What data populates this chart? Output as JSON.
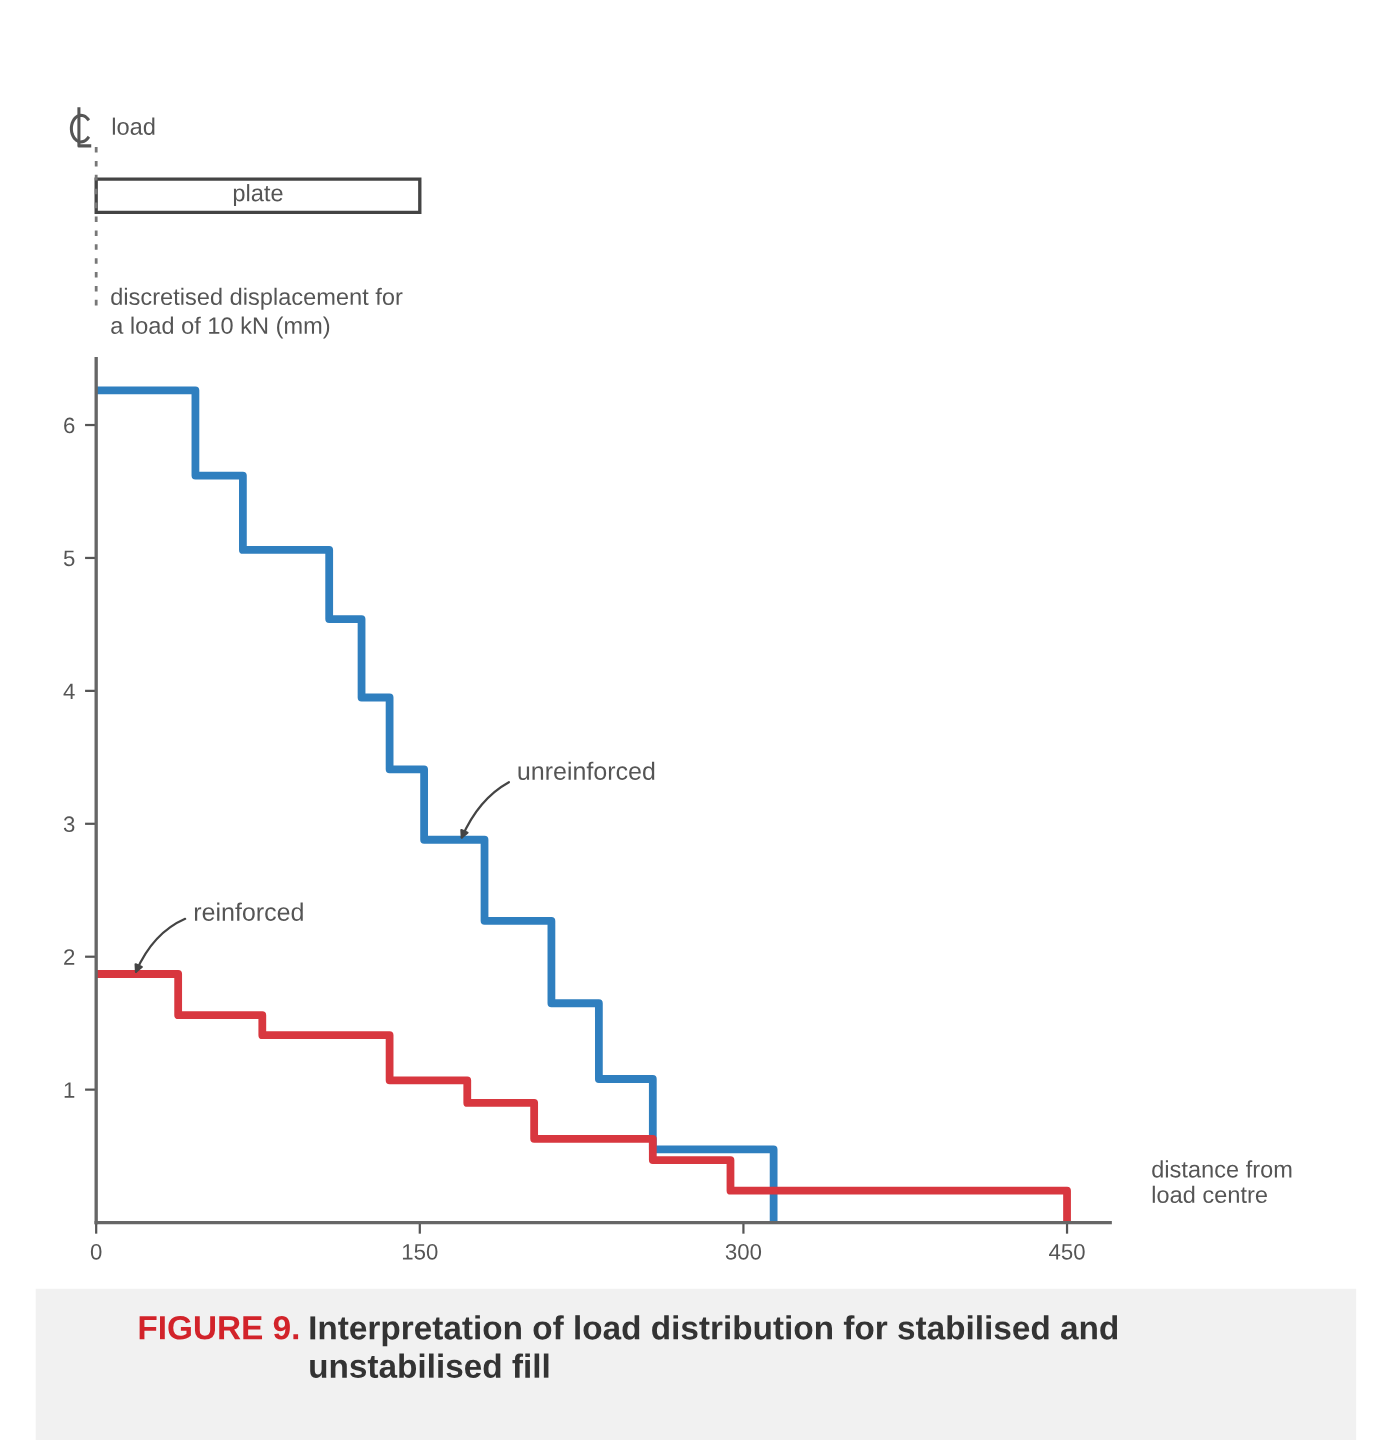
{
  "chart_data": {
    "type": "step",
    "title": "FIGURE 9.",
    "subtitle": "Interpretation of load distribution for stabilised and\nunstabilised fill",
    "xlabel": "distance from\nload centre",
    "ylabel": "discretised displacement for\na load of 10 kN (mm)",
    "xlim": [
      0,
      470
    ],
    "xticks": [
      0,
      150,
      300,
      450
    ],
    "ylim": [
      0,
      6.5
    ],
    "yticks": [
      1,
      2,
      3,
      4,
      5,
      6
    ],
    "series": [
      {
        "color": "#2f7fbf",
        "x": [
          0,
          46,
          68,
          108,
          123,
          136,
          152,
          180,
          211,
          233,
          258,
          314
        ],
        "values": [
          6.26,
          5.62,
          5.06,
          4.54,
          3.95,
          3.41,
          2.88,
          2.27,
          1.65,
          1.08,
          0.55,
          0
        ]
      },
      {
        "color": "#d8373f",
        "x": [
          0,
          38,
          77,
          136,
          172,
          203,
          258,
          294,
          450
        ],
        "values": [
          1.87,
          1.56,
          1.41,
          1.07,
          0.9,
          0.63,
          0.47,
          0.24,
          0
        ]
      }
    ],
    "annotations": [
      "load",
      "plate",
      {
        "text": "unreinforced",
        "x": 169,
        "y": 2.88
      },
      {
        "text": "reinforced",
        "x": 18,
        "y": 1.87
      }
    ]
  }
}
